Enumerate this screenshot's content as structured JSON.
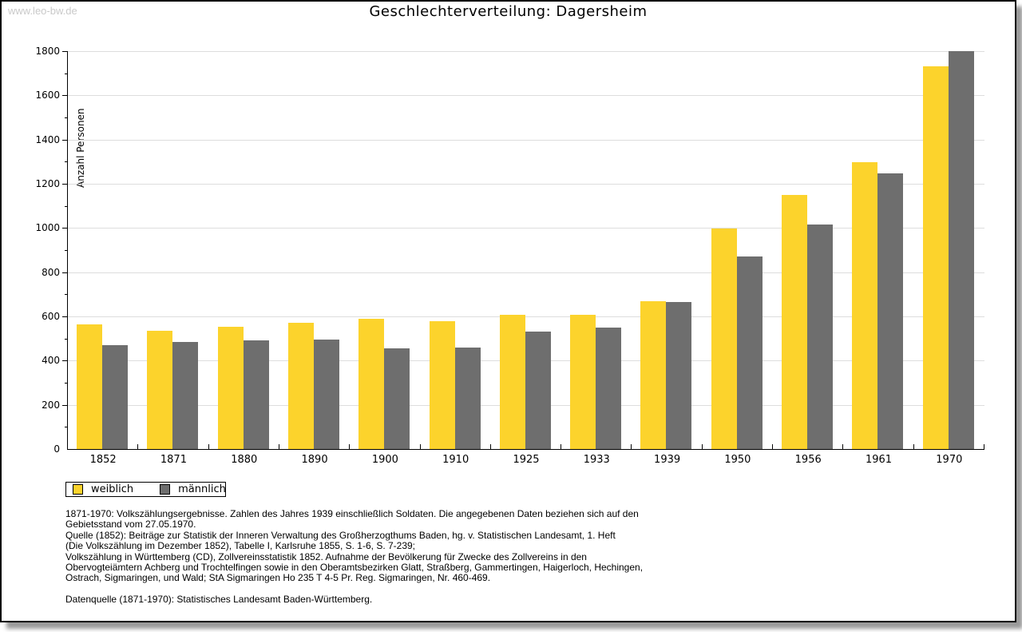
{
  "watermark": "www.leo-bw.de",
  "chart_data": {
    "type": "bar",
    "title": "Geschlechterverteilung: Dagersheim",
    "ylabel": "Anzahl Personen",
    "xlabel": "",
    "ylim": [
      0,
      1800
    ],
    "ytick_step": 200,
    "yminor_step": 100,
    "grid": true,
    "legend_position": "bottom-left",
    "categories": [
      "1852",
      "1871",
      "1880",
      "1890",
      "1900",
      "1910",
      "1925",
      "1933",
      "1939",
      "1950",
      "1956",
      "1961",
      "1970"
    ],
    "series": [
      {
        "name": "weiblich",
        "color": "#fcd32c",
        "values": [
          565,
          536,
          554,
          570,
          591,
          580,
          606,
          607,
          670,
          997,
          1148,
          1299,
          1731
        ]
      },
      {
        "name": "männlich",
        "color": "#6e6e6e",
        "values": [
          470,
          484,
          490,
          495,
          455,
          459,
          530,
          549,
          664,
          871,
          1016,
          1246,
          1799
        ]
      }
    ]
  },
  "legend": {
    "items": [
      {
        "label": "weiblich",
        "color": "#fcd32c"
      },
      {
        "label": "männlich",
        "color": "#6e6e6e"
      }
    ]
  },
  "footer": {
    "lines": [
      "1871-1970: Volkszählungsergebnisse. Zahlen des Jahres 1939 einschließlich Soldaten. Die angegebenen Daten beziehen sich auf den",
      "Gebietsstand vom 27.05.1970.",
      "Quelle (1852): Beiträge zur Statistik der Inneren Verwaltung des Großherzogthums Baden, hg. v. Statistischen Landesamt, 1. Heft",
      "(Die Volkszählung im Dezember 1852), Tabelle I, Karlsruhe 1855, S. 1-6, S. 7-239;",
      "Volkszählung in Württemberg (CD), Zollvereinsstatistik 1852. Aufnahme der Bevölkerung für Zwecke des Zollvereins in den",
      "Obervogteiämtern Achberg und Trochtelfingen sowie in den Oberamtsbezirken Glatt, Straßberg, Gammertingen, Haigerloch, Hechingen,",
      "Ostrach, Sigmaringen, und Wald; StA Sigmaringen Ho 235 T 4-5 Pr. Reg. Sigmaringen, Nr. 460-469."
    ],
    "datenquelle": "Datenquelle (1871-1970): Statistisches Landesamt Baden-Württemberg."
  },
  "colors": {
    "gridline": "#dddddd",
    "axis": "#000000",
    "watermark": "#c9c9c9",
    "background": "#ffffff"
  }
}
